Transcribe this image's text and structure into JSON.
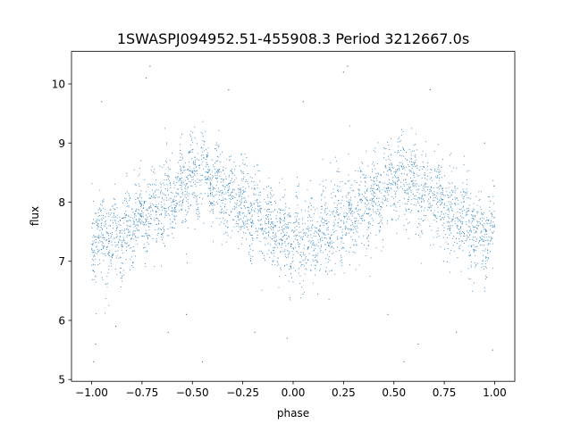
{
  "chart_data": {
    "type": "scatter",
    "title": "1SWASPJ094952.51-455908.3 Period 3212667.0s",
    "xlabel": "phase",
    "ylabel": "flux",
    "xlim": [
      -1.1,
      1.1
    ],
    "ylim": [
      4.97,
      10.55
    ],
    "xticks": [
      -1.0,
      -0.75,
      -0.5,
      -0.25,
      0.0,
      0.25,
      0.5,
      0.75,
      1.0
    ],
    "xtick_labels": [
      "−1.00",
      "−0.75",
      "−0.50",
      "−0.25",
      "0.00",
      "0.25",
      "0.50",
      "0.75",
      "1.00"
    ],
    "yticks": [
      5,
      6,
      7,
      8,
      9,
      10
    ],
    "ytick_labels": [
      "5",
      "6",
      "7",
      "8",
      "9",
      "10"
    ],
    "grid": false,
    "point_color": "#1f77b4",
    "series": [
      {
        "phase_range": [
          -1.0,
          1.0
        ],
        "mean_curve": [
          {
            "x": -1.0,
            "y": 7.45
          },
          {
            "x": -0.95,
            "y": 7.4
          },
          {
            "x": -0.9,
            "y": 7.35
          },
          {
            "x": -0.85,
            "y": 7.4
          },
          {
            "x": -0.8,
            "y": 7.6
          },
          {
            "x": -0.75,
            "y": 7.75
          },
          {
            "x": -0.7,
            "y": 7.85
          },
          {
            "x": -0.65,
            "y": 7.95
          },
          {
            "x": -0.6,
            "y": 8.05
          },
          {
            "x": -0.55,
            "y": 8.2
          },
          {
            "x": -0.5,
            "y": 8.35
          },
          {
            "x": -0.45,
            "y": 8.45
          },
          {
            "x": -0.4,
            "y": 8.3
          },
          {
            "x": -0.35,
            "y": 8.15
          },
          {
            "x": -0.3,
            "y": 8.05
          },
          {
            "x": -0.25,
            "y": 7.95
          },
          {
            "x": -0.2,
            "y": 7.8
          },
          {
            "x": -0.15,
            "y": 7.65
          },
          {
            "x": -0.1,
            "y": 7.55
          },
          {
            "x": -0.05,
            "y": 7.45
          },
          {
            "x": 0.0,
            "y": 7.4
          },
          {
            "x": 0.05,
            "y": 7.35
          },
          {
            "x": 0.1,
            "y": 7.35
          },
          {
            "x": 0.15,
            "y": 7.45
          },
          {
            "x": 0.2,
            "y": 7.6
          },
          {
            "x": 0.25,
            "y": 7.75
          },
          {
            "x": 0.3,
            "y": 7.85
          },
          {
            "x": 0.35,
            "y": 7.95
          },
          {
            "x": 0.4,
            "y": 8.05
          },
          {
            "x": 0.45,
            "y": 8.2
          },
          {
            "x": 0.5,
            "y": 8.35
          },
          {
            "x": 0.55,
            "y": 8.45
          },
          {
            "x": 0.6,
            "y": 8.3
          },
          {
            "x": 0.65,
            "y": 8.15
          },
          {
            "x": 0.7,
            "y": 8.05
          },
          {
            "x": 0.75,
            "y": 7.95
          },
          {
            "x": 0.8,
            "y": 7.8
          },
          {
            "x": 0.85,
            "y": 7.65
          },
          {
            "x": 0.9,
            "y": 7.55
          },
          {
            "x": 0.95,
            "y": 7.45
          },
          {
            "x": 1.0,
            "y": 7.45
          }
        ],
        "scatter_spread": 0.35,
        "outliers": [
          {
            "x": -0.71,
            "y": 10.3
          },
          {
            "x": -0.73,
            "y": 10.1
          },
          {
            "x": 0.27,
            "y": 10.3
          },
          {
            "x": 0.25,
            "y": 10.2
          },
          {
            "x": -0.99,
            "y": 5.3
          },
          {
            "x": -0.98,
            "y": 5.6
          },
          {
            "x": 0.99,
            "y": 5.5
          },
          {
            "x": -0.88,
            "y": 5.9
          },
          {
            "x": -0.19,
            "y": 5.8
          },
          {
            "x": 0.81,
            "y": 5.8
          },
          {
            "x": -0.03,
            "y": 5.7
          },
          {
            "x": 0.62,
            "y": 5.6
          },
          {
            "x": -0.62,
            "y": 5.8
          },
          {
            "x": 0.47,
            "y": 6.1
          },
          {
            "x": -0.53,
            "y": 6.1
          },
          {
            "x": -0.45,
            "y": 5.3
          },
          {
            "x": 0.55,
            "y": 5.3
          },
          {
            "x": -0.95,
            "y": 9.7
          },
          {
            "x": 0.05,
            "y": 9.7
          },
          {
            "x": 0.95,
            "y": 9.0
          },
          {
            "x": -0.32,
            "y": 9.9
          },
          {
            "x": 0.68,
            "y": 9.9
          }
        ]
      }
    ]
  }
}
